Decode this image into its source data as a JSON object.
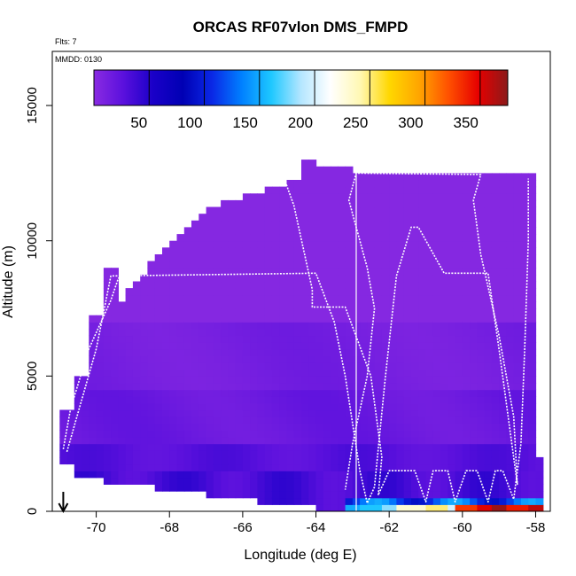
{
  "chart_data": {
    "type": "heatmap",
    "title": "ORCAS RF07vlon DMS_FMPD",
    "flights_note": "Flts: 7",
    "date_note": "MMDD: 0130",
    "xlabel": "Longitude (deg E)",
    "ylabel": "Altitude (m)",
    "xlim": [
      -71.2,
      -57.6
    ],
    "ylim": [
      0,
      17000
    ],
    "x_ticks": [
      -70,
      -68,
      -66,
      -64,
      -62,
      -60,
      -58
    ],
    "x_tick_labels": [
      "-70",
      "-68",
      "-66",
      "-64",
      "-62",
      "-60",
      "-58"
    ],
    "y_ticks": [
      0,
      5000,
      10000,
      15000
    ],
    "y_tick_labels": [
      "0",
      "5000",
      "10000",
      "15000"
    ],
    "colorbar": {
      "range": [
        0,
        375
      ],
      "ticks": [
        50,
        100,
        150,
        200,
        250,
        300,
        350
      ],
      "tick_labels": [
        "50",
        "100",
        "150",
        "200",
        "250",
        "300",
        "350"
      ],
      "colors": [
        "#8a2be2",
        "#5a10dd",
        "#1a00c8",
        "#0000b4",
        "#0a28e6",
        "#0080ff",
        "#1ec8ff",
        "#b4e6ff",
        "#ffffff",
        "#fff8b4",
        "#ffd700",
        "#ffa500",
        "#ff5000",
        "#e60000",
        "#8b1a1a"
      ]
    },
    "arrow_marker_x": -70.9,
    "flight_track": [
      [
        -70.9,
        2300
      ],
      [
        -70.7,
        3800
      ],
      [
        -70.2,
        6000
      ],
      [
        -69.6,
        7800
      ],
      [
        -69.4,
        8600
      ],
      [
        -68.5,
        9700
      ],
      [
        -67.8,
        11000
      ],
      [
        -67.3,
        12000
      ],
      [
        -66.6,
        12750
      ],
      [
        -65.0,
        12800
      ],
      [
        -64.6,
        11300
      ],
      [
        -64.1,
        8200
      ],
      [
        -64.1,
        7550
      ],
      [
        -63.2,
        7550
      ],
      [
        -62.5,
        5000
      ],
      [
        -62.2,
        2000
      ],
      [
        -62.3,
        600
      ],
      [
        -62.0,
        1500
      ],
      [
        -61.3,
        1500
      ],
      [
        -61.0,
        350
      ],
      [
        -60.8,
        1500
      ],
      [
        -60.4,
        1500
      ],
      [
        -60.2,
        350
      ],
      [
        -59.9,
        1500
      ],
      [
        -59.6,
        1500
      ],
      [
        -59.3,
        350
      ],
      [
        -59.1,
        1500
      ],
      [
        -58.9,
        1500
      ],
      [
        -58.6,
        450
      ],
      [
        -58.4,
        2500
      ],
      [
        -58.3,
        6000
      ],
      [
        -58.2,
        10000
      ],
      [
        -58.2,
        12300
      ]
    ],
    "flight_track_2": [
      [
        -70.8,
        2200
      ],
      [
        -70.0,
        6000
      ],
      [
        -69.6,
        8700
      ],
      [
        -64.0,
        8800
      ],
      [
        -63.5,
        7000
      ],
      [
        -63.2,
        5000
      ],
      [
        -62.8,
        1500
      ],
      [
        -62.6,
        300
      ],
      [
        -62.4,
        900
      ],
      [
        -62.1,
        5000
      ],
      [
        -61.8,
        8700
      ],
      [
        -61.4,
        10500
      ],
      [
        -61.2,
        10500
      ],
      [
        -60.5,
        8800
      ],
      [
        -59.3,
        8800
      ],
      [
        -59.0,
        6000
      ],
      [
        -58.7,
        3000
      ],
      [
        -58.5,
        1000
      ],
      [
        -58.6,
        3500
      ],
      [
        -59.0,
        6500
      ],
      [
        -59.5,
        9500
      ],
      [
        -59.7,
        11500
      ],
      [
        -59.5,
        12450
      ],
      [
        -62.9,
        12500
      ],
      [
        -63.1,
        11500
      ],
      [
        -62.6,
        9000
      ],
      [
        -62.4,
        7500
      ],
      [
        -62.6,
        5000
      ],
      [
        -63.0,
        2500
      ],
      [
        -63.2,
        800
      ]
    ],
    "vertical_line_x": -62.9,
    "surface_values": [
      {
        "x0": -63.1,
        "x1": -62.8,
        "value": 150
      },
      {
        "x0": -62.8,
        "x1": -62.2,
        "value": 160
      },
      {
        "x0": -62.2,
        "x1": -61.7,
        "value": 180
      },
      {
        "x0": -61.7,
        "x1": -61.0,
        "value": 230
      },
      {
        "x0": -61.0,
        "x1": -60.4,
        "value": 250
      },
      {
        "x0": -60.4,
        "x1": -60.1,
        "value": 200
      },
      {
        "x0": -60.1,
        "x1": -59.6,
        "value": 330
      },
      {
        "x0": -59.6,
        "x1": -59.2,
        "value": 350
      },
      {
        "x0": -59.2,
        "x1": -58.8,
        "value": 370
      },
      {
        "x0": -58.8,
        "x1": -58.2,
        "value": 340
      },
      {
        "x0": -58.2,
        "x1": -57.8,
        "value": 360
      }
    ]
  }
}
